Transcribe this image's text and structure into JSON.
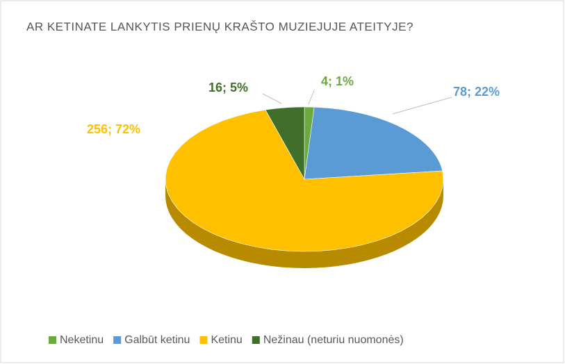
{
  "chart_data": {
    "type": "pie3d",
    "title": "AR KETINATE LANKYTIS PRIENŲ KRAŠTO MUZIEJUJE ATEITYJE?",
    "categories": [
      "Neketinu",
      "Galbūt ketinu",
      "Ketinu",
      "Nežinau (neturiu nuomonės)"
    ],
    "values": [
      4,
      78,
      256,
      16
    ],
    "value_labels": [
      "4; 1%",
      "78; 22%",
      "256; 72%",
      "16; 5%"
    ],
    "colors": [
      "#6aaa3f",
      "#5b9bd5",
      "#ffc000",
      "#3f6f2a"
    ],
    "legend": "bottom"
  }
}
